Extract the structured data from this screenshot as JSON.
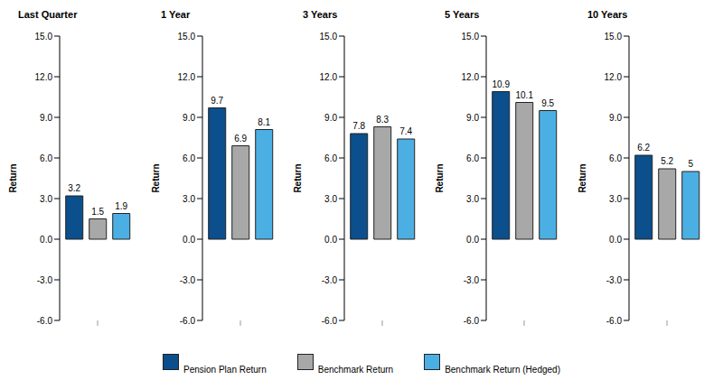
{
  "chart_data": [
    {
      "type": "bar",
      "title": "Last Quarter",
      "y_label": "Return",
      "categories": [
        null
      ],
      "series": [
        {
          "name": "Pension Plan Return",
          "color": "#0b4f8c",
          "values": [
            3.2
          ]
        },
        {
          "name": "Benchmark Return",
          "color": "#a8a8a8",
          "values": [
            1.5
          ]
        },
        {
          "name": "Benchmark Return (Hedged)",
          "color": "#4cafe3",
          "values": [
            1.9
          ]
        }
      ],
      "ylim": [
        -6,
        15
      ],
      "yticks": [
        {
          "value": -6,
          "label": "-6.0"
        },
        {
          "value": -3,
          "label": "-3.0"
        },
        {
          "value": 0,
          "label": "0.0"
        },
        {
          "value": 3,
          "label": "3.0"
        },
        {
          "value": 6,
          "label": "6.0"
        },
        {
          "value": 9,
          "label": "9.0"
        },
        {
          "value": 12,
          "label": "12.0"
        },
        {
          "value": 15,
          "label": "15.0"
        }
      ],
      "grid": false,
      "data_labels": true,
      "legend": "bottom"
    },
    {
      "type": "bar",
      "title": "1 Year",
      "y_label": "Return",
      "categories": [
        null
      ],
      "series": [
        {
          "name": "Pension Plan Return",
          "color": "#0b4f8c",
          "values": [
            9.7
          ]
        },
        {
          "name": "Benchmark Return",
          "color": "#a8a8a8",
          "values": [
            6.9
          ]
        },
        {
          "name": "Benchmark Return (Hedged)",
          "color": "#4cafe3",
          "values": [
            8.1
          ]
        }
      ],
      "ylim": [
        -6,
        15
      ],
      "yticks": [
        {
          "value": -6,
          "label": "-6.0"
        },
        {
          "value": -3,
          "label": "-3.0"
        },
        {
          "value": 0,
          "label": "0.0"
        },
        {
          "value": 3,
          "label": "3.0"
        },
        {
          "value": 6,
          "label": "6.0"
        },
        {
          "value": 9,
          "label": "9.0"
        },
        {
          "value": 12,
          "label": "12.0"
        },
        {
          "value": 15,
          "label": "15.0"
        }
      ],
      "grid": false,
      "data_labels": true,
      "legend": "bottom"
    },
    {
      "type": "bar",
      "title": "3 Years",
      "y_label": "Return",
      "categories": [
        null
      ],
      "series": [
        {
          "name": "Pension Plan Return",
          "color": "#0b4f8c",
          "values": [
            7.8
          ]
        },
        {
          "name": "Benchmark Return",
          "color": "#a8a8a8",
          "values": [
            8.3
          ]
        },
        {
          "name": "Benchmark Return (Hedged)",
          "color": "#4cafe3",
          "values": [
            7.4
          ]
        }
      ],
      "ylim": [
        -6,
        15
      ],
      "yticks": [
        {
          "value": -6,
          "label": "-6.0"
        },
        {
          "value": -3,
          "label": "-3.0"
        },
        {
          "value": 0,
          "label": "0.0"
        },
        {
          "value": 3,
          "label": "3.0"
        },
        {
          "value": 6,
          "label": "6.0"
        },
        {
          "value": 9,
          "label": "9.0"
        },
        {
          "value": 12,
          "label": "12.0"
        },
        {
          "value": 15,
          "label": "15.0"
        }
      ],
      "grid": false,
      "data_labels": true,
      "legend": "bottom"
    },
    {
      "type": "bar",
      "title": "5 Years",
      "y_label": "Return",
      "categories": [
        null
      ],
      "series": [
        {
          "name": "Pension Plan Return",
          "color": "#0b4f8c",
          "values": [
            10.9
          ]
        },
        {
          "name": "Benchmark Return",
          "color": "#a8a8a8",
          "values": [
            10.1
          ]
        },
        {
          "name": "Benchmark Return (Hedged)",
          "color": "#4cafe3",
          "values": [
            9.5
          ]
        }
      ],
      "ylim": [
        -6,
        15
      ],
      "yticks": [
        {
          "value": -6,
          "label": "-6.0"
        },
        {
          "value": -3,
          "label": "-3.0"
        },
        {
          "value": 0,
          "label": "0.0"
        },
        {
          "value": 3,
          "label": "3.0"
        },
        {
          "value": 6,
          "label": "6.0"
        },
        {
          "value": 9,
          "label": "9.0"
        },
        {
          "value": 12,
          "label": "12.0"
        },
        {
          "value": 15,
          "label": "15.0"
        }
      ],
      "grid": false,
      "data_labels": true,
      "legend": "bottom"
    },
    {
      "type": "bar",
      "title": "10 Years",
      "y_label": "Return",
      "categories": [
        null
      ],
      "series": [
        {
          "name": "Pension Plan Return",
          "color": "#0b4f8c",
          "values": [
            6.2
          ]
        },
        {
          "name": "Benchmark Return",
          "color": "#a8a8a8",
          "values": [
            5.2
          ]
        },
        {
          "name": "Benchmark Return (Hedged)",
          "color": "#4cafe3",
          "values": [
            5.0
          ]
        }
      ],
      "ylim": [
        -6,
        15
      ],
      "yticks": [
        {
          "value": -6,
          "label": "-6.0"
        },
        {
          "value": -3,
          "label": "-3.0"
        },
        {
          "value": 0,
          "label": "0.0"
        },
        {
          "value": 3,
          "label": "3.0"
        },
        {
          "value": 6,
          "label": "6.0"
        },
        {
          "value": 9,
          "label": "9.0"
        },
        {
          "value": 12,
          "label": "12.0"
        },
        {
          "value": 15,
          "label": "15.0"
        }
      ],
      "grid": false,
      "data_labels": true,
      "legend": "bottom"
    }
  ]
}
